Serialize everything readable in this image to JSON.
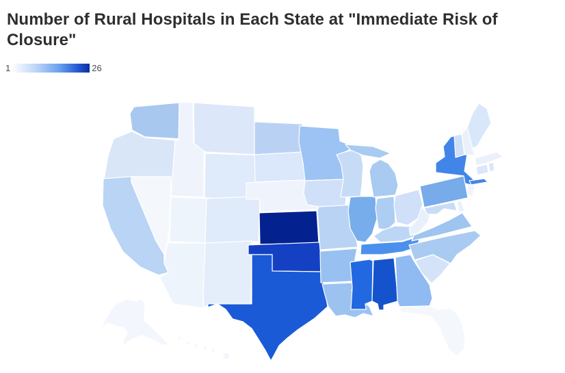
{
  "title": "Number of Rural Hospitals in Each State at \"Immediate Risk of Closure\"",
  "legend": {
    "min_label": "1",
    "max_label": "26",
    "gradient": [
      "#fdfeff",
      "#bdd6f7",
      "#6ba2ee",
      "#2458d0",
      "#0b2fa0"
    ]
  },
  "map": {
    "border_color": "#ffffff",
    "background": "#ffffff"
  },
  "chart_data": {
    "type": "heatmap",
    "variant": "us-choropleth-map",
    "title": "Number of Rural Hospitals in Each State at \"Immediate Risk of Closure\"",
    "legend": {
      "min": 1,
      "max": 26,
      "min_color": "#fdfeff",
      "max_color": "#04228f",
      "position": "top-left"
    },
    "states": [
      {
        "state": "Washington",
        "abbr": "WA",
        "value": 6,
        "color": "#a8c8f0"
      },
      {
        "state": "Oregon",
        "abbr": "OR",
        "value": 3,
        "color": "#d8e6f8"
      },
      {
        "state": "California",
        "abbr": "CA",
        "value": 5,
        "color": "#b9d4f4"
      },
      {
        "state": "Idaho",
        "abbr": "ID",
        "value": 1,
        "color": "#eff4fc"
      },
      {
        "state": "Nevada",
        "abbr": "NV",
        "value": 1,
        "color": "#f4f8fd"
      },
      {
        "state": "Utah",
        "abbr": "UT",
        "value": 1,
        "color": "#eef4fc"
      },
      {
        "state": "Arizona",
        "abbr": "AZ",
        "value": 1,
        "color": "#eef4fc"
      },
      {
        "state": "Montana",
        "abbr": "MT",
        "value": 3,
        "color": "#dce8f9"
      },
      {
        "state": "Wyoming",
        "abbr": "WY",
        "value": 2,
        "color": "#dfeafa"
      },
      {
        "state": "Colorado",
        "abbr": "CO",
        "value": 2,
        "color": "#dfeafa"
      },
      {
        "state": "New Mexico",
        "abbr": "NM",
        "value": 2,
        "color": "#e4eefa"
      },
      {
        "state": "North Dakota",
        "abbr": "ND",
        "value": 5,
        "color": "#b9d2f4"
      },
      {
        "state": "South Dakota",
        "abbr": "SD",
        "value": 3,
        "color": "#dbe7fa"
      },
      {
        "state": "Nebraska",
        "abbr": "NE",
        "value": 1,
        "color": "#eef3fc"
      },
      {
        "state": "Kansas",
        "abbr": "KS",
        "value": 26,
        "color": "#04228f"
      },
      {
        "state": "Oklahoma",
        "abbr": "OK",
        "value": 19,
        "color": "#1440c4"
      },
      {
        "state": "Texas",
        "abbr": "TX",
        "value": 16,
        "color": "#1a5ad6"
      },
      {
        "state": "Minnesota",
        "abbr": "MN",
        "value": 7,
        "color": "#9cc3f3"
      },
      {
        "state": "Iowa",
        "abbr": "IA",
        "value": 3,
        "color": "#cfe0f8"
      },
      {
        "state": "Missouri",
        "abbr": "MO",
        "value": 5,
        "color": "#b8d3f4"
      },
      {
        "state": "Arkansas",
        "abbr": "AR",
        "value": 6,
        "color": "#98c1f1"
      },
      {
        "state": "Louisiana",
        "abbr": "LA",
        "value": 6,
        "color": "#9cc2f0"
      },
      {
        "state": "Wisconsin",
        "abbr": "WI",
        "value": 4,
        "color": "#c6dbf6"
      },
      {
        "state": "Illinois",
        "abbr": "IL",
        "value": 8,
        "color": "#78adec"
      },
      {
        "state": "Michigan",
        "abbr": "MI",
        "value": 6,
        "color": "#a9cbf1"
      },
      {
        "state": "Indiana",
        "abbr": "IN",
        "value": 5,
        "color": "#aecdf2"
      },
      {
        "state": "Ohio",
        "abbr": "OH",
        "value": 3,
        "color": "#cfe0f8"
      },
      {
        "state": "Kentucky",
        "abbr": "KY",
        "value": 4,
        "color": "#bdd6f5"
      },
      {
        "state": "Tennessee",
        "abbr": "TN",
        "value": 11,
        "color": "#4b90ec"
      },
      {
        "state": "Mississippi",
        "abbr": "MS",
        "value": 13,
        "color": "#2268e0"
      },
      {
        "state": "Alabama",
        "abbr": "AL",
        "value": 17,
        "color": "#1553cd"
      },
      {
        "state": "Georgia",
        "abbr": "GA",
        "value": 7,
        "color": "#8fbbf2"
      },
      {
        "state": "Florida",
        "abbr": "FL",
        "value": 1,
        "color": "#f4f8fd"
      },
      {
        "state": "South Carolina",
        "abbr": "SC",
        "value": 3,
        "color": "#d4e3f8"
      },
      {
        "state": "North Carolina",
        "abbr": "NC",
        "value": 6,
        "color": "#a9cbf2"
      },
      {
        "state": "Virginia",
        "abbr": "VA",
        "value": 6,
        "color": "#9ec4f0"
      },
      {
        "state": "West Virginia",
        "abbr": "WV",
        "value": 2,
        "color": "#e8f0fb"
      },
      {
        "state": "Maryland",
        "abbr": "MD",
        "value": 3,
        "color": "#c8dcf6"
      },
      {
        "state": "Delaware",
        "abbr": "DE",
        "value": 1,
        "color": "#e8f0fb"
      },
      {
        "state": "New Jersey",
        "abbr": "NJ",
        "value": 1,
        "color": "#f0f5fc"
      },
      {
        "state": "Pennsylvania",
        "abbr": "PA",
        "value": 9,
        "color": "#77abe9"
      },
      {
        "state": "New York",
        "abbr": "NY",
        "value": 12,
        "color": "#4285e8"
      },
      {
        "state": "Connecticut",
        "abbr": "CT",
        "value": 2,
        "color": "#dbe7fa"
      },
      {
        "state": "Rhode Island",
        "abbr": "RI",
        "value": 2,
        "color": "#dbe7fa"
      },
      {
        "state": "Massachusetts",
        "abbr": "MA",
        "value": 1,
        "color": "#eaf1fb"
      },
      {
        "state": "Vermont",
        "abbr": "VT",
        "value": 3,
        "color": "#cfe0f8"
      },
      {
        "state": "New Hampshire",
        "abbr": "NH",
        "value": 1,
        "color": "#eaf1fb"
      },
      {
        "state": "Maine",
        "abbr": "ME",
        "value": 3,
        "color": "#d9e7fa"
      },
      {
        "state": "Alaska",
        "abbr": "AK",
        "value": 1,
        "color": "#f3f7fd"
      },
      {
        "state": "Hawaii",
        "abbr": "HI",
        "value": 1,
        "color": "#f3f7fd"
      }
    ]
  }
}
